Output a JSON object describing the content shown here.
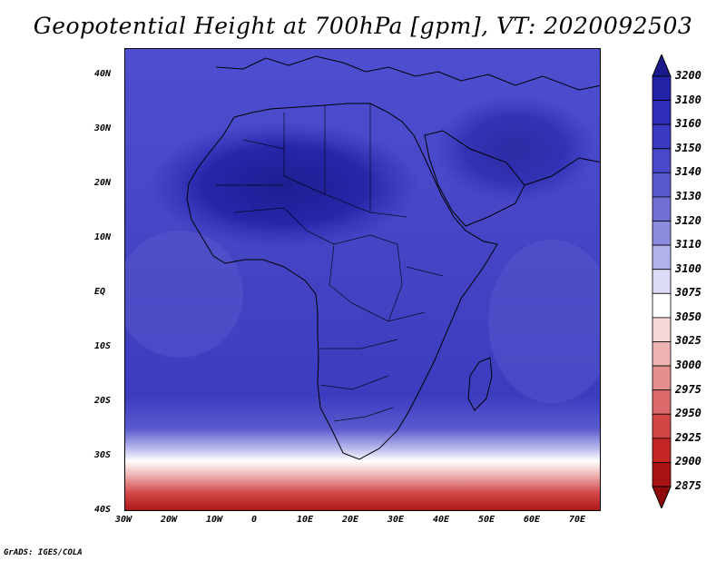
{
  "title": "Geopotential Height at 700hPa [gpm], VT: 2020092503",
  "credit": "GrADS: IGES/COLA",
  "map": {
    "lon_range": [
      -30,
      75
    ],
    "lat_range": [
      -40,
      45
    ],
    "x_ticks": [
      "30W",
      "20W",
      "10W",
      "0",
      "10E",
      "20E",
      "30E",
      "40E",
      "50E",
      "60E",
      "70E"
    ],
    "x_tick_values": [
      -30,
      -20,
      -10,
      0,
      10,
      20,
      30,
      40,
      50,
      60,
      70
    ],
    "y_ticks": [
      "40N",
      "30N",
      "20N",
      "10N",
      "EQ",
      "10S",
      "20S",
      "30S",
      "40S"
    ],
    "y_tick_values": [
      40,
      30,
      20,
      10,
      0,
      -10,
      -20,
      -30,
      -40
    ]
  },
  "colorbar": {
    "levels": [
      "3200",
      "3180",
      "3160",
      "3150",
      "3140",
      "3130",
      "3120",
      "3110",
      "3100",
      "3075",
      "3050",
      "3025",
      "3000",
      "2975",
      "2950",
      "2925",
      "2900",
      "2875"
    ],
    "colors": [
      "#1a1a8c",
      "#2222a6",
      "#2d2db8",
      "#3a3ac2",
      "#4848c8",
      "#5a5acf",
      "#6f6fd6",
      "#8c8cdf",
      "#b3b3ec",
      "#dcdcf6",
      "#ffffff",
      "#f6d6d6",
      "#eeb4b4",
      "#e58f8f",
      "#dc6a6a",
      "#d24646",
      "#c42626",
      "#a81414",
      "#8f0a0a"
    ]
  }
}
